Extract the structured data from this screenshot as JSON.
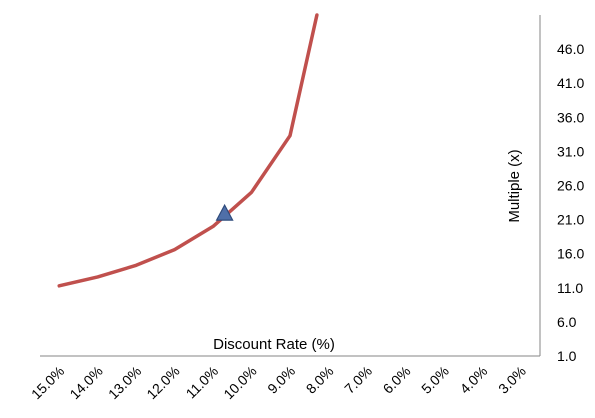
{
  "chart_data": {
    "type": "line",
    "xlabel": "Discount Rate (%)",
    "ylabel": "Multiple (x)",
    "x_tick_labels": [
      "15.0%",
      "14.0%",
      "13.0%",
      "12.0%",
      "11.0%",
      "10.0%",
      "9.0%",
      "8.0%",
      "7.0%",
      "6.0%",
      "5.0%",
      "4.0%",
      "3.0%"
    ],
    "y_tick_labels": [
      "1.0",
      "6.0",
      "11.0",
      "16.0",
      "21.0",
      "26.0",
      "31.0",
      "36.0",
      "41.0",
      "46.0"
    ],
    "ylim": [
      1.0,
      51.0
    ],
    "x_order": "descending",
    "y_axis_position": "right",
    "grid": false,
    "series": [
      {
        "color": "#c0504d",
        "points": [
          {
            "x": 15.0,
            "y": 11.3
          },
          {
            "x": 14.0,
            "y": 12.6
          },
          {
            "x": 13.0,
            "y": 14.3
          },
          {
            "x": 12.0,
            "y": 16.6
          },
          {
            "x": 11.0,
            "y": 20.0
          },
          {
            "x": 10.0,
            "y": 25.0
          },
          {
            "x": 9.0,
            "y": 33.3
          },
          {
            "x": 8.3,
            "y": 51.0
          }
        ]
      }
    ],
    "marker": {
      "shape": "triangle",
      "x": 10.7,
      "y": 21.8,
      "color": "#4f6fa8"
    }
  }
}
